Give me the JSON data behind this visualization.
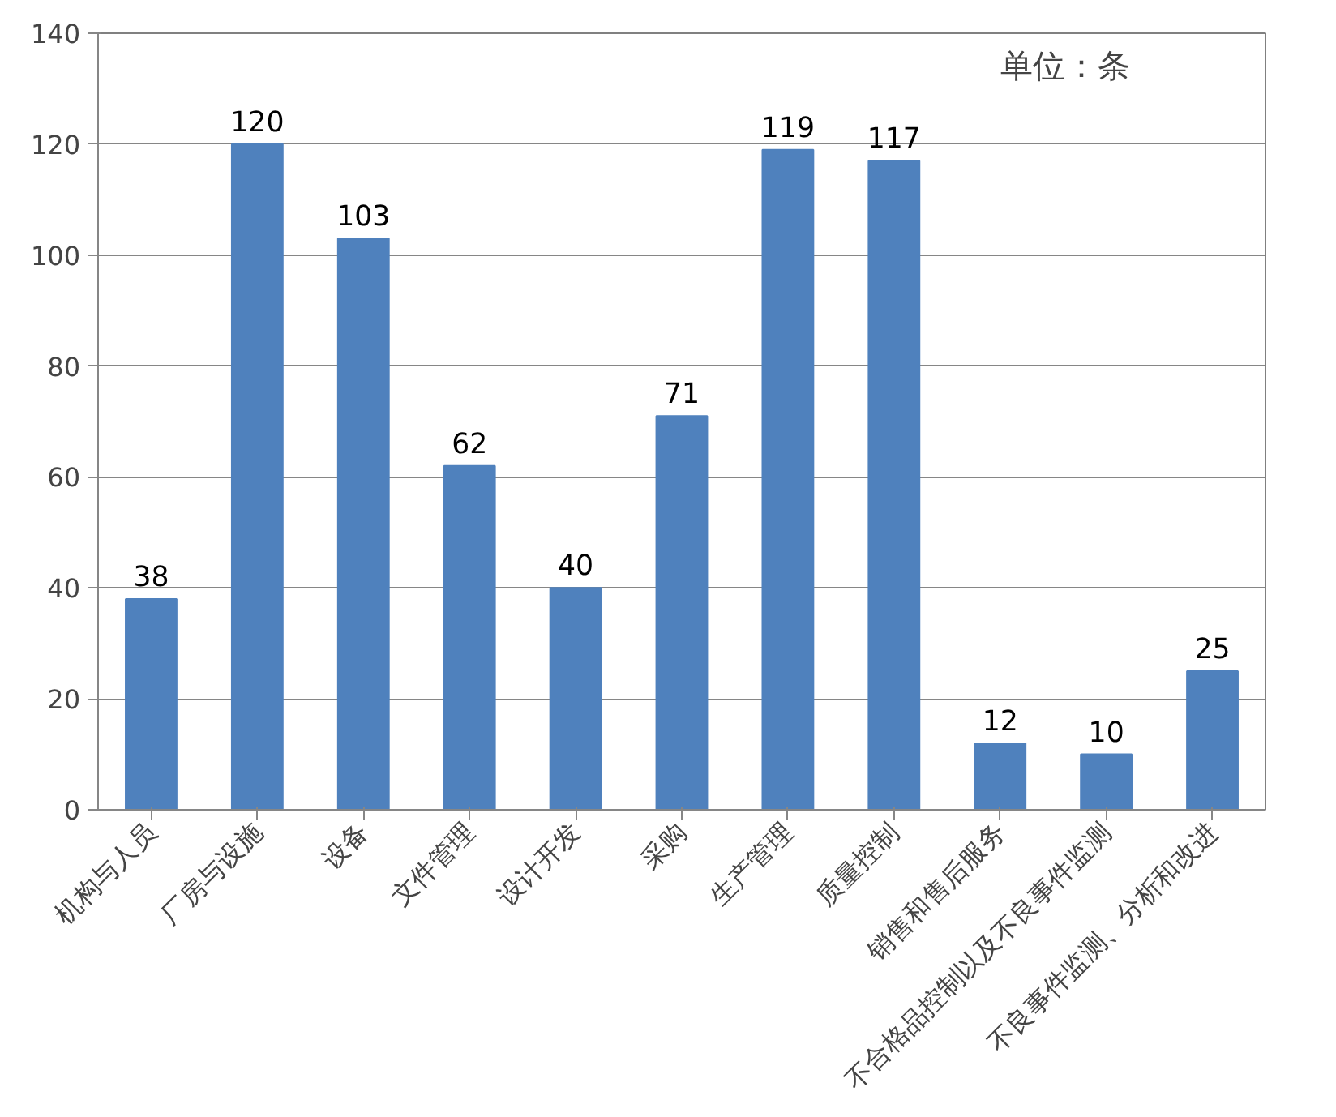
{
  "chart_data": {
    "type": "bar",
    "categories": [
      "机构与人员",
      "厂房与设施",
      "设备",
      "文件管理",
      "设计开发",
      "采购",
      "生产管理",
      "质量控制",
      "销售和售后服务",
      "不合格品控制以及不良事件监测",
      "不良事件监测、分析和改进"
    ],
    "values": [
      38,
      120,
      103,
      62,
      40,
      71,
      119,
      117,
      12,
      10,
      25
    ],
    "color": "#4f81bd",
    "ylim": [
      0,
      140
    ],
    "yticks": [
      0,
      20,
      40,
      60,
      80,
      100,
      120,
      140
    ],
    "grid": "y",
    "data_labels": true,
    "annotations": [
      "单位：条"
    ]
  }
}
